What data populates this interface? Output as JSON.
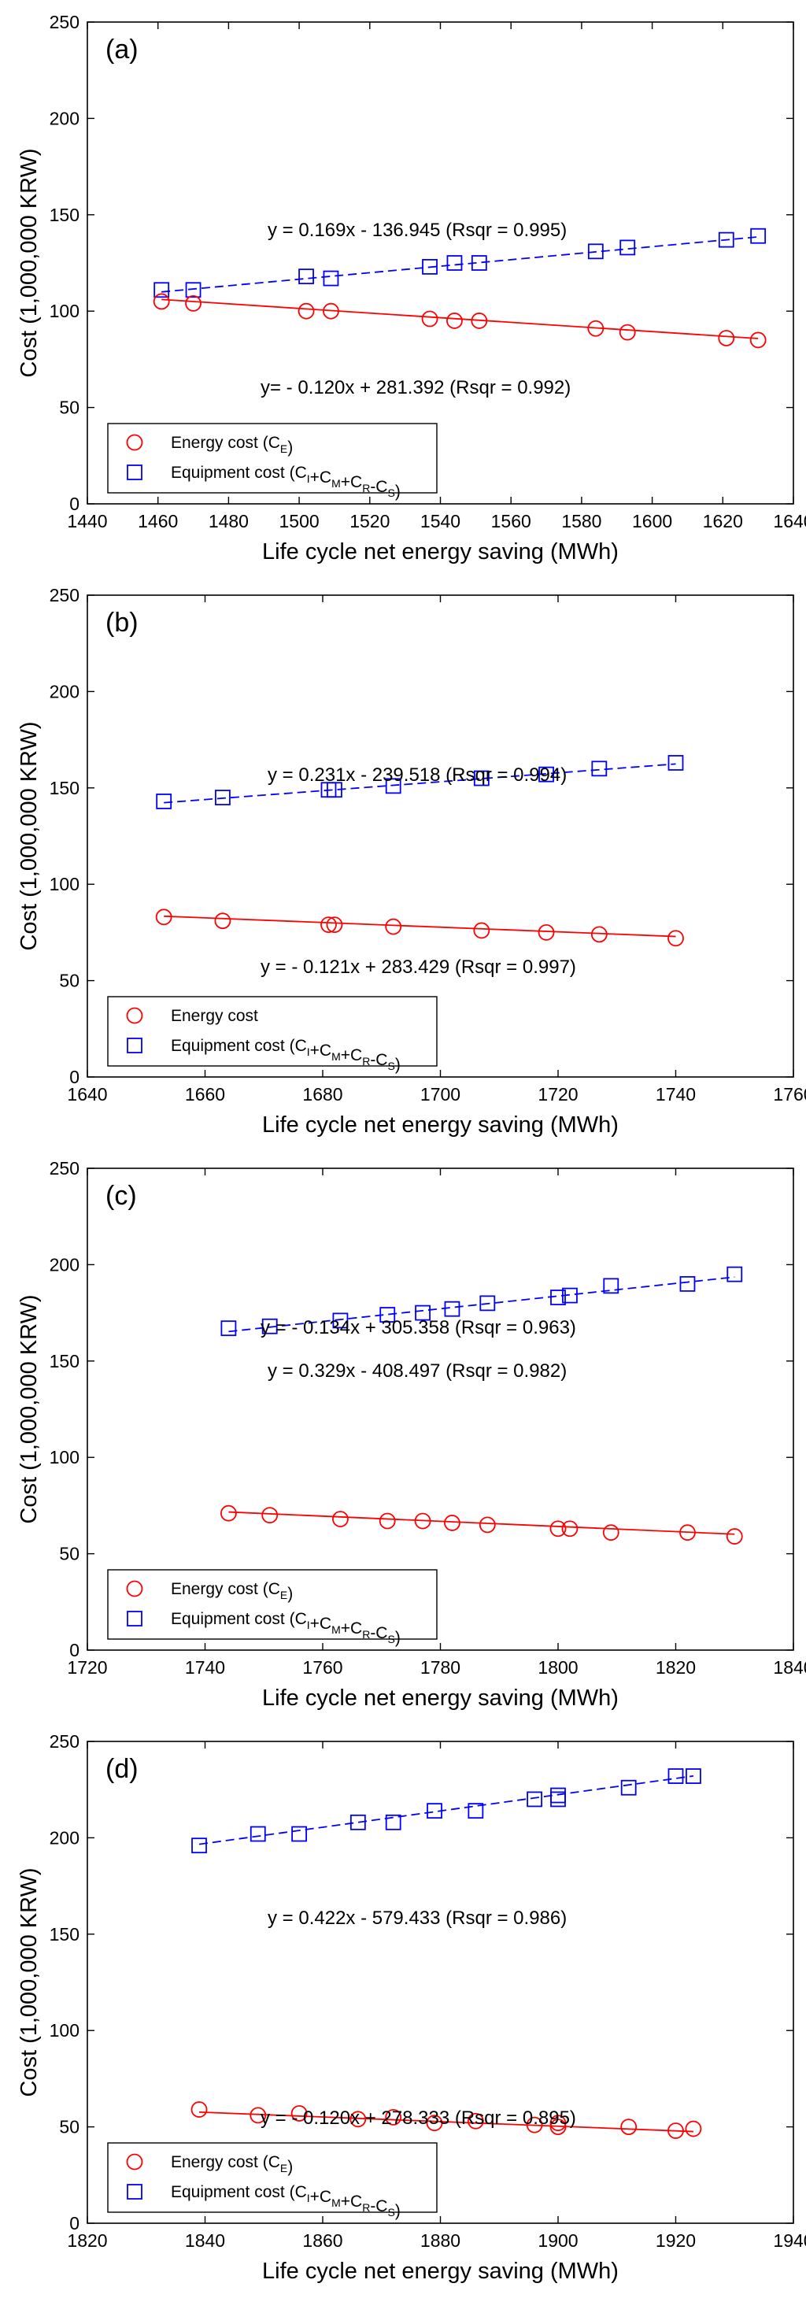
{
  "figure": {
    "description_title": ""
  },
  "chart_data": [
    {
      "type": "scatter",
      "panel_label": "(a)",
      "xlabel": "Life cycle net energy saving (MWh)",
      "ylabel": "Cost (1,000,000 KRW)",
      "xlim": [
        1440,
        1640
      ],
      "ylim": [
        0,
        250
      ],
      "xticks": [
        1440,
        1460,
        1480,
        1500,
        1520,
        1540,
        1560,
        1580,
        1600,
        1620,
        1640
      ],
      "yticks": [
        0,
        50,
        100,
        150,
        200,
        250
      ],
      "grid": false,
      "legend_position": "bottom-left",
      "series": [
        {
          "name": "Equipment cost",
          "legend": {
            "main": "Equipment cost (",
            "parts": [
              [
                "C",
                "I"
              ],
              [
                "+C",
                "M"
              ],
              [
                "+C",
                "R"
              ],
              [
                "-C",
                "S"
              ]
            ],
            "end": ")"
          },
          "marker": "square",
          "color": "#0000ff",
          "x": [
            1461,
            1470,
            1502,
            1509,
            1537,
            1544,
            1551,
            1584,
            1593,
            1621,
            1630
          ],
          "y": [
            111,
            111,
            118,
            117,
            123,
            125,
            125,
            131,
            133,
            137,
            139
          ],
          "fit": {
            "slope": 0.169,
            "intercept": -136.945,
            "equation": "y = 0.169x - 136.945 (Rsqr = 0.995)",
            "style": "dashed"
          }
        },
        {
          "name": "Energy cost",
          "legend": {
            "main": "Energy cost (",
            "parts": [
              [
                "C",
                "E"
              ]
            ],
            "end": ")"
          },
          "marker": "circle",
          "color": "#ff0000",
          "x": [
            1461,
            1470,
            1502,
            1509,
            1537,
            1544,
            1551,
            1584,
            1593,
            1621,
            1630
          ],
          "y": [
            105,
            104,
            100,
            100,
            96,
            95,
            95,
            91,
            89,
            86,
            85
          ],
          "fit": {
            "slope": -0.12,
            "intercept": 281.392,
            "equation": "y= - 0.120x + 281.392 (Rsqr = 0.992)",
            "style": "solid"
          }
        }
      ]
    },
    {
      "type": "scatter",
      "panel_label": "(b)",
      "xlabel": "Life cycle net energy saving (MWh)",
      "ylabel": "Cost (1,000,000 KRW)",
      "xlim": [
        1640,
        1760
      ],
      "ylim": [
        0,
        250
      ],
      "xticks": [
        1640,
        1660,
        1680,
        1700,
        1720,
        1740,
        1760
      ],
      "yticks": [
        0,
        50,
        100,
        150,
        200,
        250
      ],
      "grid": false,
      "legend_position": "bottom-left",
      "series": [
        {
          "name": "Equipment cost",
          "legend": {
            "main": "Equipment cost (",
            "parts": [
              [
                "C",
                "I"
              ],
              [
                "+C",
                "M"
              ],
              [
                "+C",
                "R"
              ],
              [
                "-C",
                "S"
              ]
            ],
            "end": ")"
          },
          "marker": "square",
          "color": "#0000ff",
          "x": [
            1653,
            1663,
            1681,
            1682,
            1692,
            1707,
            1718,
            1727,
            1740
          ],
          "y": [
            143,
            145,
            149,
            149,
            151,
            155,
            157,
            160,
            163
          ],
          "fit": {
            "slope": 0.231,
            "intercept": -239.518,
            "equation": "y = 0.231x - 239.518 (Rsqr = 0.994)",
            "style": "dashed"
          }
        },
        {
          "name": "Energy cost",
          "legend": {
            "main": "Energy cost",
            "parts": [],
            "end": ""
          },
          "marker": "circle",
          "color": "#ff0000",
          "x": [
            1653,
            1663,
            1681,
            1682,
            1692,
            1707,
            1718,
            1727,
            1740
          ],
          "y": [
            83,
            81,
            79,
            79,
            78,
            76,
            75,
            74,
            72
          ],
          "fit": {
            "slope": -0.121,
            "intercept": 283.429,
            "equation": "y = - 0.121x + 283.429 (Rsqr = 0.997)",
            "style": "solid"
          }
        }
      ]
    },
    {
      "type": "scatter",
      "panel_label": "(c)",
      "xlabel": "Life cycle net energy saving (MWh)",
      "ylabel": "Cost (1,000,000 KRW)",
      "xlim": [
        1720,
        1840
      ],
      "ylim": [
        0,
        250
      ],
      "xticks": [
        1720,
        1740,
        1760,
        1780,
        1800,
        1820,
        1840
      ],
      "yticks": [
        0,
        50,
        100,
        150,
        200,
        250
      ],
      "grid": false,
      "legend_position": "bottom-left",
      "series": [
        {
          "name": "Equipment cost",
          "legend": {
            "main": "Equipment cost (",
            "parts": [
              [
                "C",
                "I"
              ],
              [
                "+C",
                "M"
              ],
              [
                "+C",
                "R"
              ],
              [
                "-C",
                "S"
              ]
            ],
            "end": ")"
          },
          "marker": "square",
          "color": "#0000ff",
          "x": [
            1744,
            1751,
            1763,
            1771,
            1777,
            1782,
            1788,
            1800,
            1802,
            1809,
            1822,
            1830
          ],
          "y": [
            167,
            168,
            171,
            174,
            175,
            177,
            180,
            183,
            184,
            189,
            190,
            195
          ],
          "fit": {
            "slope": 0.329,
            "intercept": -408.497,
            "equation": "y = 0.329x - 408.497 (Rsqr = 0.982)",
            "style": "dashed"
          }
        },
        {
          "name": "Energy cost",
          "legend": {
            "main": "Energy cost (",
            "parts": [
              [
                "C",
                "E"
              ]
            ],
            "end": ")"
          },
          "marker": "circle",
          "color": "#ff0000",
          "x": [
            1744,
            1751,
            1763,
            1771,
            1777,
            1782,
            1788,
            1800,
            1802,
            1809,
            1822,
            1830
          ],
          "y": [
            71,
            70,
            68,
            67,
            67,
            66,
            65,
            63,
            63,
            61,
            61,
            59
          ],
          "fit": {
            "slope": -0.134,
            "intercept": 305.358,
            "equation": "y = - 0.134x + 305.358 (Rsqr = 0.963)",
            "style": "solid"
          }
        }
      ]
    },
    {
      "type": "scatter",
      "panel_label": "(d)",
      "xlabel": "Life cycle net energy saving (MWh)",
      "ylabel": "Cost (1,000,000 KRW)",
      "xlim": [
        1820,
        1940
      ],
      "ylim": [
        0,
        250
      ],
      "xticks": [
        1820,
        1840,
        1860,
        1880,
        1900,
        1920,
        1940
      ],
      "yticks": [
        0,
        50,
        100,
        150,
        200,
        250
      ],
      "grid": false,
      "legend_position": "bottom-left",
      "series": [
        {
          "name": "Equipment cost",
          "legend": {
            "main": "Equipment cost (",
            "parts": [
              [
                "C",
                "I"
              ],
              [
                "+C",
                "M"
              ],
              [
                "+C",
                "R"
              ],
              [
                "-C",
                "S"
              ]
            ],
            "end": ")"
          },
          "marker": "square",
          "color": "#0000ff",
          "x": [
            1839,
            1849,
            1856,
            1866,
            1872,
            1879,
            1886,
            1896,
            1900,
            1900,
            1912,
            1920,
            1923
          ],
          "y": [
            196,
            202,
            202,
            208,
            208,
            214,
            214,
            220,
            220,
            222,
            226,
            232,
            232
          ],
          "fit": {
            "slope": 0.422,
            "intercept": -579.433,
            "equation": "y = 0.422x - 579.433 (Rsqr = 0.986)",
            "style": "dashed"
          }
        },
        {
          "name": "Energy cost",
          "legend": {
            "main": "Energy cost (",
            "parts": [
              [
                "C",
                "E"
              ]
            ],
            "end": ")"
          },
          "marker": "circle",
          "color": "#ff0000",
          "x": [
            1839,
            1849,
            1856,
            1866,
            1872,
            1879,
            1886,
            1896,
            1900,
            1900,
            1912,
            1920,
            1923
          ],
          "y": [
            59,
            56,
            57,
            54,
            55,
            52,
            53,
            51,
            50,
            52,
            50,
            48,
            49
          ],
          "fit": {
            "slope": -0.12,
            "intercept": 278.333,
            "equation": "y = - 0.120x + 278.333 (Rsqr = 0.895)",
            "style": "solid"
          }
        }
      ]
    }
  ]
}
